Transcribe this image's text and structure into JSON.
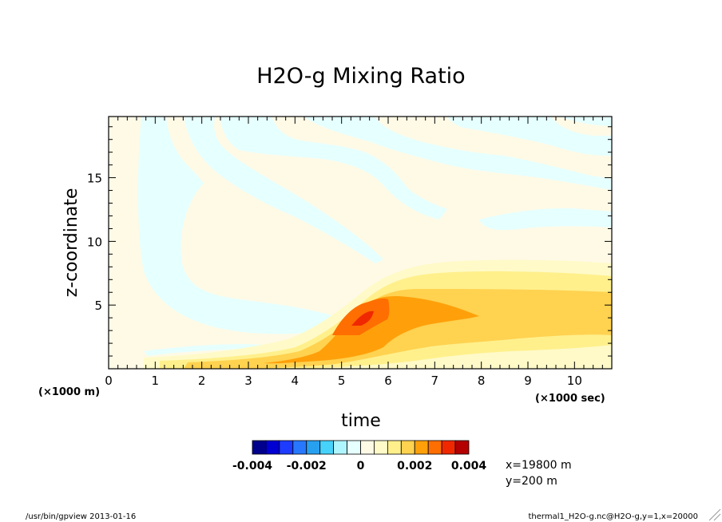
{
  "chart_data": {
    "type": "heatmap",
    "title": "H2O-g Mixing Ratio",
    "xlabel": "time",
    "ylabel": "z-coordinate",
    "x_unit": "(×1000 sec)",
    "y_unit": "(×1000 m)",
    "xlim": [
      0,
      10.8
    ],
    "ylim": [
      0,
      19.8
    ],
    "x_ticks": [
      "0",
      "1",
      "2",
      "3",
      "4",
      "5",
      "6",
      "7",
      "8",
      "9",
      "10"
    ],
    "y_ticks": [
      "5",
      "10",
      "15"
    ],
    "colorbar": {
      "colors": [
        "#00008c",
        "#0000d2",
        "#1e3cff",
        "#2878ff",
        "#28a0f0",
        "#46d2fa",
        "#aff5ff",
        "#e6ffff",
        "#fffae6",
        "#fffac8",
        "#fff08c",
        "#ffd250",
        "#ffa00a",
        "#ff6e00",
        "#f02800",
        "#b40000"
      ],
      "tick_labels": [
        "-0.004",
        "-0.002",
        "0",
        "0.002",
        "0.004"
      ],
      "tick_values": [
        -0.004,
        -0.002,
        0,
        0.002,
        0.004
      ],
      "range": [
        -0.004,
        0.004
      ],
      "step": 0.0005
    },
    "regions": [
      {
        "level": 0.00025,
        "color": "#fffae6",
        "desc": "background near zero"
      },
      {
        "level": -0.00025,
        "color": "#e6ffff",
        "desc": "alternating slanted bands above plume"
      },
      {
        "level": 0.00075,
        "color": "#fffac8",
        "desc": "plume envelope rising from 1 to 8.5 km"
      },
      {
        "level": 0.00125,
        "color": "#fff08c",
        "desc": "plume interior"
      },
      {
        "level": 0.00175,
        "color": "#ffd250",
        "desc": "plume core 1-6 km"
      },
      {
        "level": 0.00225,
        "color": "#ffa00a",
        "desc": "maximum 2.5-5.5 km at t=4.5-7.8"
      },
      {
        "level": 0.00275,
        "color": "#ff6e00",
        "desc": "peak near t=5-5.9, z=3-5 km"
      }
    ]
  },
  "info": {
    "x_point": "x=19800 m",
    "y_point": "y=200 m"
  },
  "footer": {
    "left": "/usr/bin/gpview  2013-01-16",
    "right": "thermal1_H2O-g.nc@H2O-g,y=1,x=20000"
  },
  "colors": {
    "frame": "#000000",
    "background": "#ffffff"
  }
}
